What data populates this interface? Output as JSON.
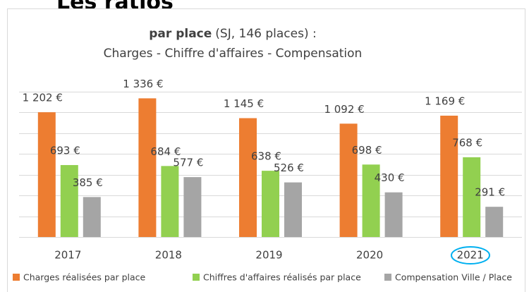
{
  "heading": "Les ratios",
  "chart_data": {
    "type": "bar",
    "title_bold": "par place",
    "title_rest": "(SJ, 146 places) :",
    "subtitle": "Charges - Chiffre d'affaires - Compensation",
    "categories": [
      "2017",
      "2018",
      "2019",
      "2020",
      "2021"
    ],
    "series": [
      {
        "name": "Charges réalisées par place",
        "color": "#ed7d31",
        "values": [
          1202,
          1336,
          1145,
          1092,
          1169
        ],
        "value_labels": [
          "1 202 €",
          "1 336 €",
          "1 145 €",
          "1 092 €",
          "1 169 €"
        ]
      },
      {
        "name": "Chiffres d'affaires réalisés par place",
        "color": "#92d050",
        "values": [
          693,
          684,
          638,
          698,
          768
        ],
        "value_labels": [
          "693 €",
          "684 €",
          "638 €",
          "698 €",
          "768 €"
        ]
      },
      {
        "name": "Compensation Ville / Place",
        "color": "#a5a5a5",
        "values": [
          385,
          577,
          526,
          430,
          291
        ],
        "value_labels": [
          "385 €",
          "577 €",
          "526 €",
          "430 €",
          "291 €"
        ]
      }
    ],
    "ylim": [
      0,
      1400
    ],
    "yticks": [
      0,
      200,
      400,
      600,
      800,
      1000,
      1200,
      1400
    ],
    "grid": true
  }
}
